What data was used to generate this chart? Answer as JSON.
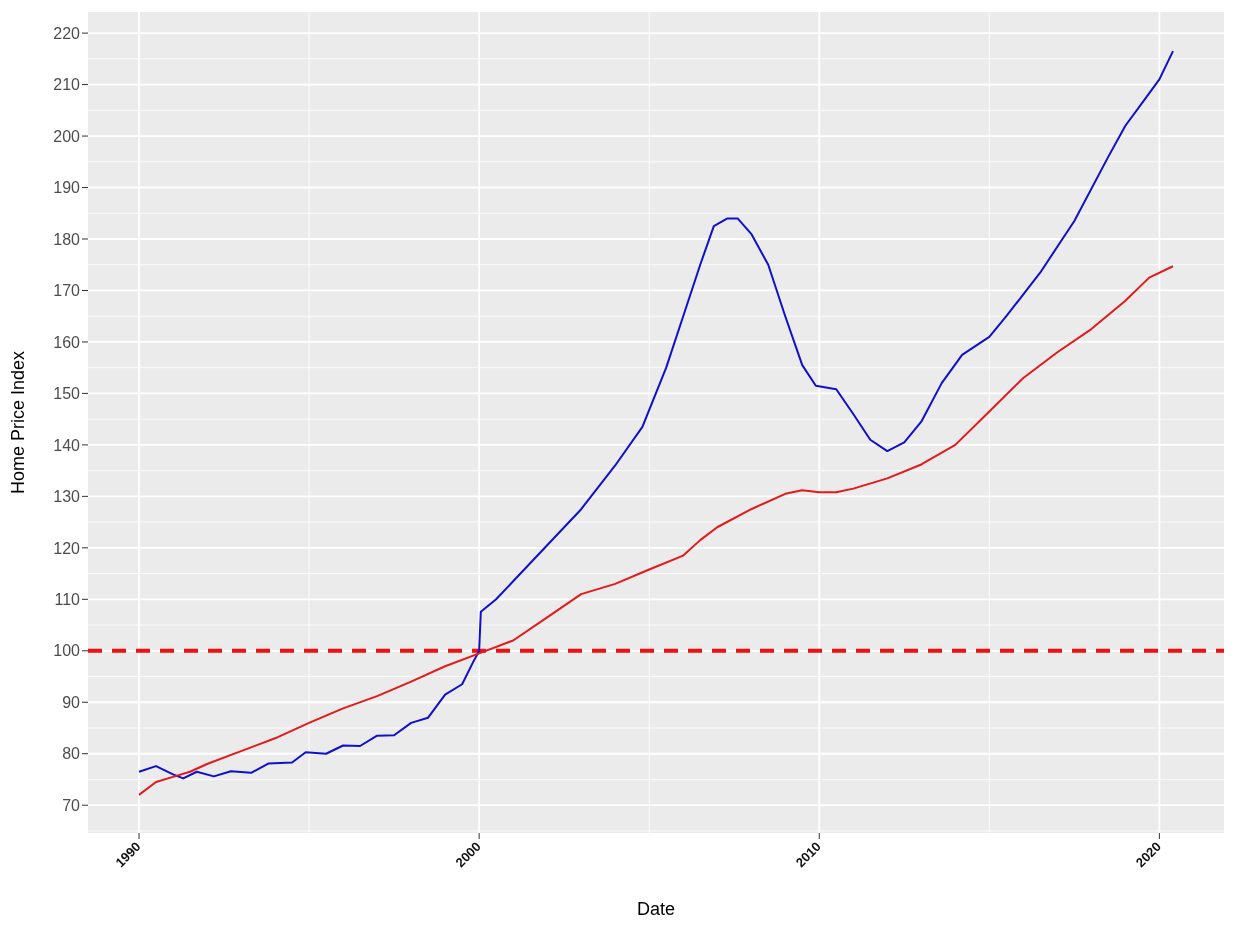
{
  "chart_data": {
    "type": "line",
    "xlabel": "Date",
    "ylabel": "Home Price Index",
    "xlim": [
      1988.5,
      2021.9
    ],
    "xticks": [
      1990,
      2000,
      2010,
      2020
    ],
    "ylim": [
      64.6,
      224.1
    ],
    "yticks": [
      70,
      80,
      90,
      100,
      110,
      120,
      130,
      140,
      150,
      160,
      170,
      180,
      190,
      200,
      210,
      220
    ],
    "grid": true,
    "legend": false,
    "marker": "none",
    "line_style": "solid",
    "ref_lines": [
      {
        "axis": "y",
        "value": 100,
        "color": "#ee1111",
        "line_style": "dashed"
      }
    ],
    "series": [
      {
        "color": "#1010cc",
        "x": [
          1990.0,
          1990.5,
          1991.0,
          1991.3,
          1991.7,
          1992.2,
          1992.7,
          1993.3,
          1993.8,
          1994.5,
          1994.9,
          1995.5,
          1996.0,
          1996.5,
          1997.0,
          1997.5,
          1998.0,
          1998.5,
          1999.0,
          1999.5,
          1999.8,
          2000.0,
          2000.05,
          2000.5,
          2001.0,
          2002.0,
          2003.0,
          2004.0,
          2004.8,
          2005.5,
          2006.0,
          2006.5,
          2006.9,
          2007.3,
          2007.6,
          2008.0,
          2008.5,
          2009.0,
          2009.5,
          2009.9,
          2010.5,
          2011.0,
          2011.5,
          2012.0,
          2012.5,
          2013.0,
          2013.6,
          2014.2,
          2015.0,
          2015.5,
          2016.5,
          2017.5,
          2018.5,
          2019.0,
          2019.5,
          2020.0,
          2020.4
        ],
        "values": [
          76.5,
          77.6,
          76,
          75.2,
          76.5,
          75.6,
          76.6,
          76.3,
          78.1,
          78.3,
          80.3,
          80.0,
          81.6,
          81.5,
          83.5,
          83.6,
          86.0,
          87.0,
          91.5,
          93.5,
          97.5,
          100,
          107.6,
          110,
          113.5,
          120.5,
          127.5,
          136,
          143.5,
          155,
          165,
          175,
          182.5,
          184,
          184,
          181,
          175,
          165,
          155.5,
          151.5,
          150.8,
          146,
          141,
          138.8,
          140.5,
          144.5,
          152,
          157.5,
          161,
          165,
          173.5,
          183.5,
          196,
          202,
          206.5,
          211,
          216.5
        ]
      },
      {
        "color": "#e31a1c",
        "x": [
          1990.0,
          1990.5,
          1991.0,
          1991.5,
          1992.0,
          1993.0,
          1994.0,
          1995.0,
          1996.0,
          1997.0,
          1998.0,
          1999.0,
          2000.0,
          2001.0,
          2002.0,
          2003.0,
          2004.0,
          2005.0,
          2006.0,
          2006.5,
          2007.0,
          2008.0,
          2009.0,
          2009.5,
          2010.0,
          2010.5,
          2011.0,
          2012.0,
          2013.0,
          2014.0,
          2015.0,
          2016.0,
          2017.0,
          2018.0,
          2019.0,
          2019.7,
          2020.4
        ],
        "values": [
          72.0,
          74.5,
          75.5,
          76.5,
          78,
          80.5,
          83,
          86,
          88.8,
          91.2,
          94,
          97,
          99.5,
          102,
          106.5,
          111,
          113,
          115.8,
          118.5,
          121.5,
          124,
          127.5,
          130.5,
          131.2,
          130.8,
          130.8,
          131.5,
          133.5,
          136.2,
          140,
          146.5,
          153,
          158,
          162.5,
          168,
          172.5,
          174.7
        ]
      }
    ]
  }
}
